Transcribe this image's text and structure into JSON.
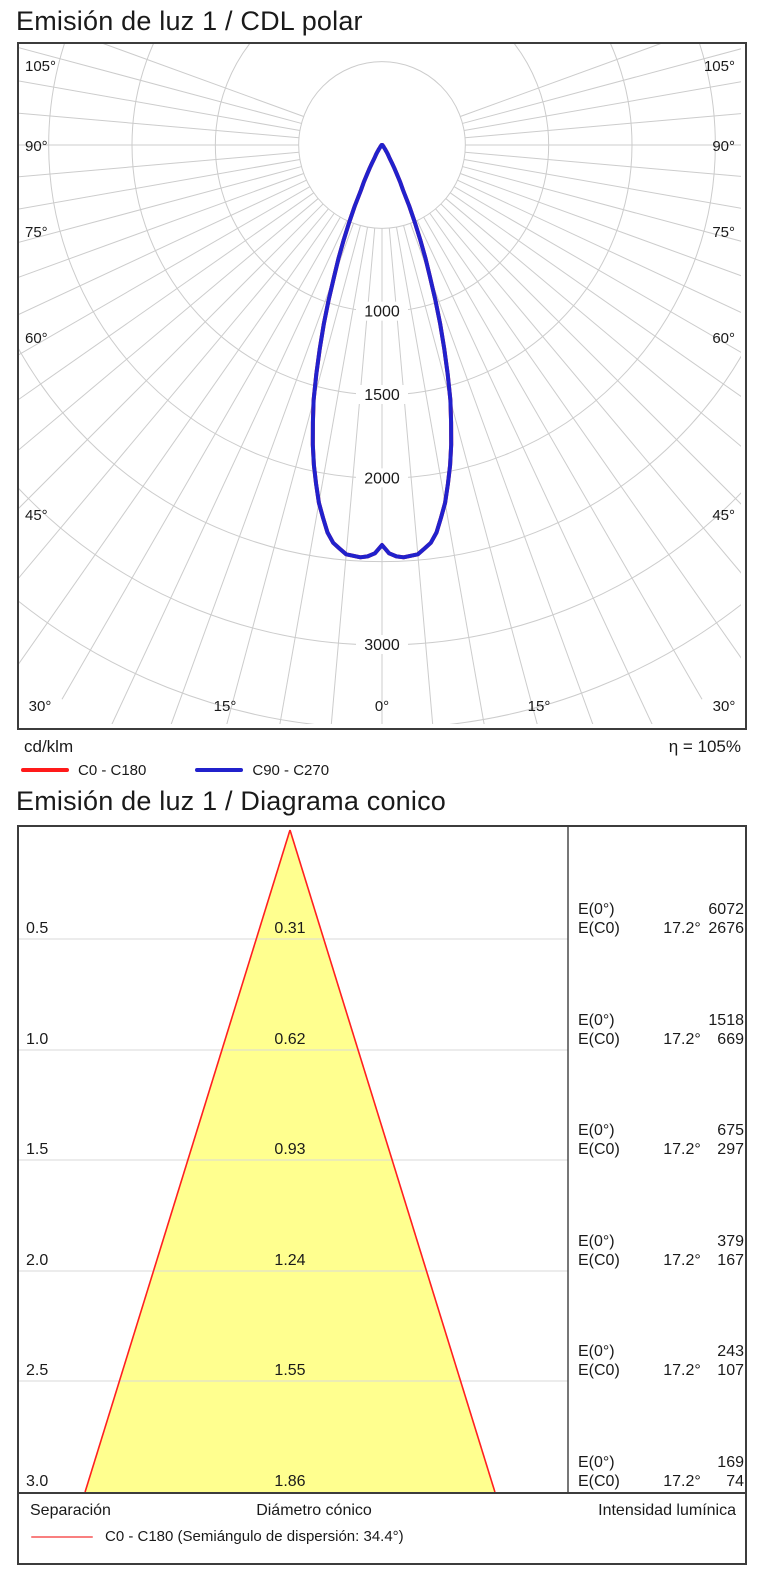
{
  "titles": {
    "polar": "Emisión de luz 1 / CDL polar",
    "cone": "Emisión de luz 1 / Diagrama conico"
  },
  "polar_legend": {
    "unit": "cd/klm",
    "efficiency": "η = 105%",
    "items": [
      {
        "label": "C0 - C180",
        "color": "#ff1a1a"
      },
      {
        "label": "C90 - C270",
        "color": "#2121cc"
      }
    ]
  },
  "cone_footer": {
    "left": "Separación",
    "center": "Diámetro cónico",
    "right": "Intensidad lumínica",
    "legend_label": "C0 - C180 (Semiángulo de dispersión: 34.4°)",
    "legend_color": "#f97f7f"
  },
  "chart_data": [
    {
      "type": "line",
      "subtype": "polar-candela",
      "title": "Emisión de luz 1 / CDL polar",
      "unit": "cd/klm",
      "efficiency_pct": 105,
      "ring_step": 500,
      "ring_max": 3500,
      "ring_labels": [
        1000,
        1500,
        2000,
        3000
      ],
      "side_angle_labels": [
        "105°",
        "90°",
        "75°",
        "60°",
        "45°"
      ],
      "bottom_angle_labels": [
        "30°",
        "15°",
        "0°",
        "15°",
        "30°"
      ],
      "grid_color": "#cccccc",
      "series": [
        {
          "name": "C0 - C180",
          "color": "#ff1a1a",
          "samples": [
            [
              0,
              2400
            ],
            [
              1,
              2450
            ],
            [
              2.5,
              2480
            ],
            [
              5,
              2465
            ],
            [
              7.5,
              2390
            ],
            [
              10,
              2180
            ],
            [
              12.5,
              1910
            ],
            [
              15,
              1585
            ],
            [
              17.2,
              1245
            ],
            [
              20,
              840
            ],
            [
              22.5,
              555
            ],
            [
              25,
              300
            ],
            [
              27.5,
              175
            ],
            [
              30,
              90
            ],
            [
              35,
              38
            ],
            [
              40,
              16
            ],
            [
              50,
              6
            ],
            [
              60,
              3
            ],
            [
              75,
              1
            ],
            [
              90,
              0
            ]
          ]
        },
        {
          "name": "C90 - C270",
          "color": "#2121cc",
          "samples": [
            [
              0,
              2400
            ],
            [
              1,
              2450
            ],
            [
              2.5,
              2480
            ],
            [
              5,
              2465
            ],
            [
              7.5,
              2390
            ],
            [
              10,
              2180
            ],
            [
              12.5,
              1910
            ],
            [
              15,
              1585
            ],
            [
              17.2,
              1245
            ],
            [
              20,
              840
            ],
            [
              22.5,
              555
            ],
            [
              25,
              300
            ],
            [
              27.5,
              175
            ],
            [
              30,
              90
            ],
            [
              35,
              38
            ],
            [
              40,
              16
            ],
            [
              50,
              6
            ],
            [
              60,
              3
            ],
            [
              75,
              1
            ],
            [
              90,
              0
            ]
          ]
        }
      ]
    },
    {
      "type": "table",
      "subtype": "cone-diagram",
      "title": "Emisión de luz 1 / Diagrama conico",
      "half_angle_deg": 17.2,
      "full_angle_label": "34.4°",
      "beam_fill": "#ffff8f",
      "beam_edge": "#ff2020",
      "e_labels": {
        "e0": "E(0°)",
        "ec0": "E(C0)"
      },
      "rows": [
        {
          "separation": "0.5",
          "diameter": "0.31",
          "angle": "17.2°",
          "e0": "6072",
          "ec0": "2676"
        },
        {
          "separation": "1.0",
          "diameter": "0.62",
          "angle": "17.2°",
          "e0": "1518",
          "ec0": "669"
        },
        {
          "separation": "1.5",
          "diameter": "0.93",
          "angle": "17.2°",
          "e0": "675",
          "ec0": "297"
        },
        {
          "separation": "2.0",
          "diameter": "1.24",
          "angle": "17.2°",
          "e0": "379",
          "ec0": "167"
        },
        {
          "separation": "2.5",
          "diameter": "1.55",
          "angle": "17.2°",
          "e0": "243",
          "ec0": "107"
        },
        {
          "separation": "3.0",
          "diameter": "1.86",
          "angle": "17.2°",
          "e0": "169",
          "ec0": "74"
        }
      ]
    }
  ]
}
